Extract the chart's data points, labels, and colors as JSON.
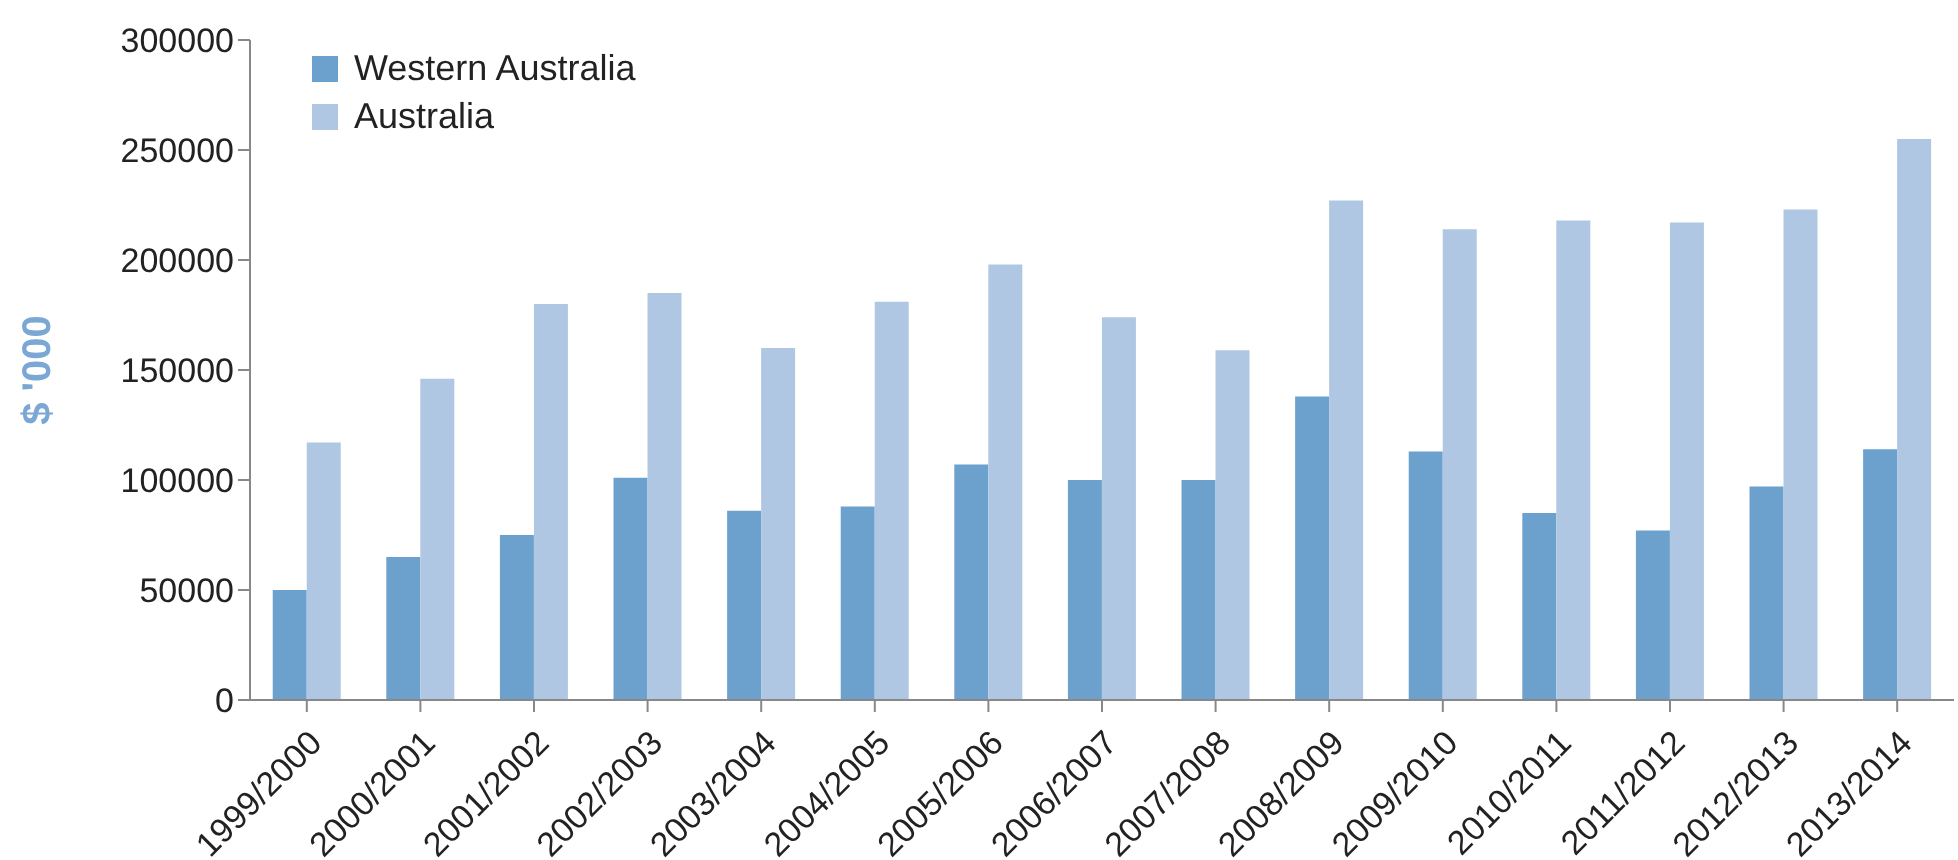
{
  "chart_data": {
    "type": "bar",
    "ylabel": "$ '000",
    "categories": [
      "1999/2000",
      "2000/2001",
      "2001/2002",
      "2002/2003",
      "2003/2004",
      "2004/2005",
      "2005/2006",
      "2006/2007",
      "2007/2008",
      "2008/2009",
      "2009/2010",
      "2010/2011",
      "2011/2012",
      "2012/2013",
      "2013/2014"
    ],
    "series": [
      {
        "name": "Western Australia",
        "color": "#6ca0cd",
        "values": [
          50000,
          65000,
          75000,
          101000,
          86000,
          88000,
          107000,
          100000,
          100000,
          138000,
          113000,
          85000,
          77000,
          97000,
          114000
        ]
      },
      {
        "name": "Australia",
        "color": "#b0c7e3",
        "values": [
          117000,
          146000,
          180000,
          185000,
          160000,
          181000,
          198000,
          174000,
          159000,
          227000,
          214000,
          218000,
          217000,
          223000,
          255000
        ]
      }
    ],
    "ylim": [
      0,
      300000
    ],
    "yticks": [
      0,
      50000,
      100000,
      150000,
      200000,
      250000,
      300000
    ],
    "grid": false,
    "legend": "top left"
  }
}
